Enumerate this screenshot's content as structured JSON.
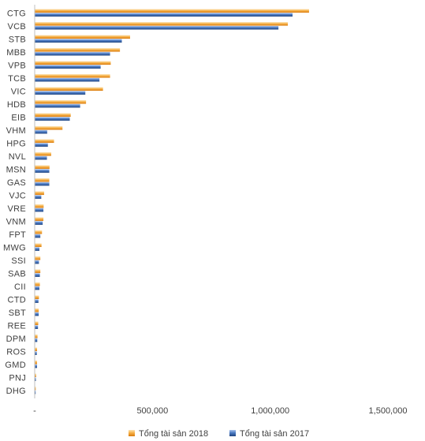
{
  "chart_data": {
    "type": "bar",
    "orientation": "horizontal",
    "categories": [
      "CTG",
      "VCB",
      "STB",
      "MBB",
      "VPB",
      "TCB",
      "VIC",
      "HDB",
      "EIB",
      "VHM",
      "HPG",
      "NVL",
      "MSN",
      "GAS",
      "VJC",
      "VRE",
      "VNM",
      "FPT",
      "MWG",
      "SSI",
      "SAB",
      "CII",
      "CTD",
      "SBT",
      "REE",
      "DPM",
      "ROS",
      "GMD",
      "PNJ",
      "DHG"
    ],
    "series": [
      {
        "name": "Tổng tài sản 2018",
        "color": "#F39A1E",
        "values": [
          1165000,
          1075000,
          405000,
          362000,
          323000,
          320000,
          290000,
          218000,
          153000,
          118000,
          82000,
          70000,
          63000,
          62000,
          40000,
          38000,
          37000,
          31000,
          29000,
          24000,
          24000,
          22000,
          18000,
          17000,
          15000,
          12000,
          10000,
          10000,
          6000,
          4500
        ]
      },
      {
        "name": "Tổng tài sản 2017",
        "color": "#2F5EA8",
        "values": [
          1095000,
          1035000,
          370000,
          320000,
          280000,
          275000,
          215000,
          193000,
          149000,
          53000,
          56000,
          52000,
          62000,
          62000,
          28000,
          37000,
          34000,
          24000,
          20000,
          18000,
          22000,
          20000,
          16000,
          17000,
          14000,
          11000,
          9000,
          10000,
          5000,
          4000
        ]
      }
    ],
    "x_ticks": [
      "-",
      "500,000",
      "1,000,000",
      "1,500,000"
    ],
    "xlim": [
      0,
      1500000
    ],
    "grid": false,
    "legend": "bottom"
  }
}
